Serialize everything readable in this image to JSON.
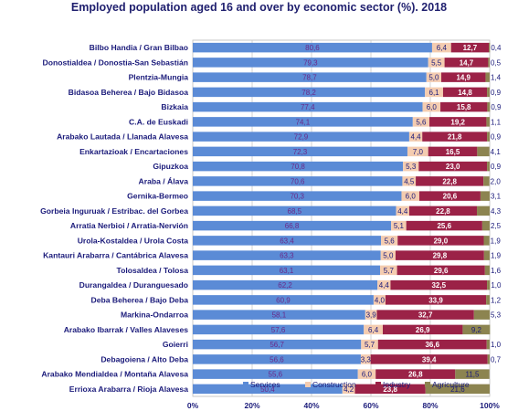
{
  "chart_data": {
    "type": "bar",
    "orientation": "horizontal",
    "stacked": true,
    "title": "Employed population aged 16 and over by economic sector (%). 2018",
    "categories": [
      "Bilbo Handia  /  Gran Bilbao",
      "Donostialdea  /  Donostia-San Sebastián",
      "Plentzia-Mungia",
      "Bidasoa Beherea  /  Bajo Bidasoa",
      "Bizkaia",
      "C.A. de Euskadi",
      "Arabako Lautada  /  Llanada Alavesa",
      "Enkartazioak  /  Encartaciones",
      "Gipuzkoa",
      "Araba  /  Álava",
      "Gernika-Bermeo",
      "Gorbeia Inguruak  /  Estribac. del Gorbea",
      "Arratia Nerbioi  /  Arratia-Nervión",
      "Urola-Kostaldea  /  Urola Costa",
      "Kantauri Arabarra  /  Cantábrica Alavesa",
      "Tolosaldea  /  Tolosa",
      "Durangaldea  /  Duranguesado",
      "Deba Beherea  /  Bajo Deba",
      "Markina-Ondarroa",
      "Arabako Ibarrak  /  Valles Alaveses",
      "Goierri",
      "Debagoiena  /  Alto Deba",
      "Arabako Mendialdea  /  Montaña Alavesa",
      "Errioxa Arabarra  /  Rioja Alavesa"
    ],
    "series": [
      {
        "name": "Services",
        "color": "#5b8bd6",
        "values": [
          80.6,
          79.3,
          78.7,
          78.2,
          77.4,
          74.1,
          72.9,
          72.3,
          70.8,
          70.6,
          70.3,
          68.5,
          66.8,
          63.4,
          63.3,
          63.1,
          62.2,
          60.9,
          58.1,
          57.6,
          56.7,
          56.6,
          55.6,
          50.4
        ],
        "labels": [
          "80,6",
          "79,3",
          "78,7",
          "78,2",
          "77,4",
          "74,1",
          "72,9",
          "72,3",
          "70,8",
          "70,6",
          "70,3",
          "68,5",
          "66,8",
          "63,4",
          "63,3",
          "63,1",
          "62,2",
          "60,9",
          "58,1",
          "57,6",
          "56,7",
          "56,6",
          "55,6",
          "50,4"
        ]
      },
      {
        "name": "Construction",
        "color": "#f4ccb0",
        "values": [
          6.4,
          5.5,
          5.0,
          6.1,
          6.0,
          5.6,
          4.4,
          7.0,
          5.3,
          4.5,
          6.0,
          4.4,
          5.1,
          5.6,
          5.0,
          5.7,
          4.4,
          4.0,
          3.9,
          6.4,
          5.7,
          3.3,
          6.0,
          4.2
        ],
        "labels": [
          "6,4",
          "5,5",
          "5,0",
          "6,1",
          "6,0",
          "5,6",
          "4,4",
          "7,0",
          "5,3",
          "4,5",
          "6,0",
          "4,4",
          "5,1",
          "5,6",
          "5,0",
          "5,7",
          "4,4",
          "4,0",
          "3,9",
          "6,4",
          "5,7",
          "3,3",
          "6,0",
          "4,2"
        ]
      },
      {
        "name": "Industry",
        "color": "#9b2247",
        "values": [
          12.7,
          14.7,
          14.9,
          14.8,
          15.8,
          19.2,
          21.8,
          16.5,
          23.0,
          22.8,
          20.6,
          22.8,
          25.6,
          29.0,
          29.8,
          29.6,
          32.5,
          33.9,
          32.7,
          26.9,
          36.6,
          39.4,
          26.8,
          23.8
        ],
        "labels": [
          "12,7",
          "14,7",
          "14,9",
          "14,8",
          "15,8",
          "19,2",
          "21,8",
          "16,5",
          "23,0",
          "22,8",
          "20,6",
          "22,8",
          "25,6",
          "29,0",
          "29,8",
          "29,6",
          "32,5",
          "33,9",
          "32,7",
          "26,9",
          "36,6",
          "39,4",
          "26,8",
          "23,8"
        ]
      },
      {
        "name": "Agriculture",
        "color": "#8c8450",
        "values": [
          0.4,
          0.5,
          1.4,
          0.9,
          0.9,
          1.1,
          0.9,
          4.1,
          0.9,
          2.0,
          3.1,
          4.3,
          2.5,
          1.9,
          1.9,
          1.6,
          1.0,
          1.2,
          5.3,
          9.2,
          1.0,
          0.7,
          11.5,
          21.6
        ],
        "labels": [
          "0,4",
          "0,5",
          "1,4",
          "0,9",
          "0,9",
          "1,1",
          "0,9",
          "4,1",
          "0,9",
          "2,0",
          "3,1",
          "4,3",
          "2,5",
          "1,9",
          "1,9",
          "1,6",
          "1,0",
          "1,2",
          "5,3",
          "9,2",
          "1,0",
          "0,7",
          "11,5",
          "21,6"
        ]
      }
    ],
    "xlim": [
      0,
      100
    ],
    "x_ticks": [
      "0%",
      "20%",
      "40%",
      "60%",
      "80%",
      "100%"
    ],
    "grid": true,
    "legend_position": "bottom"
  }
}
